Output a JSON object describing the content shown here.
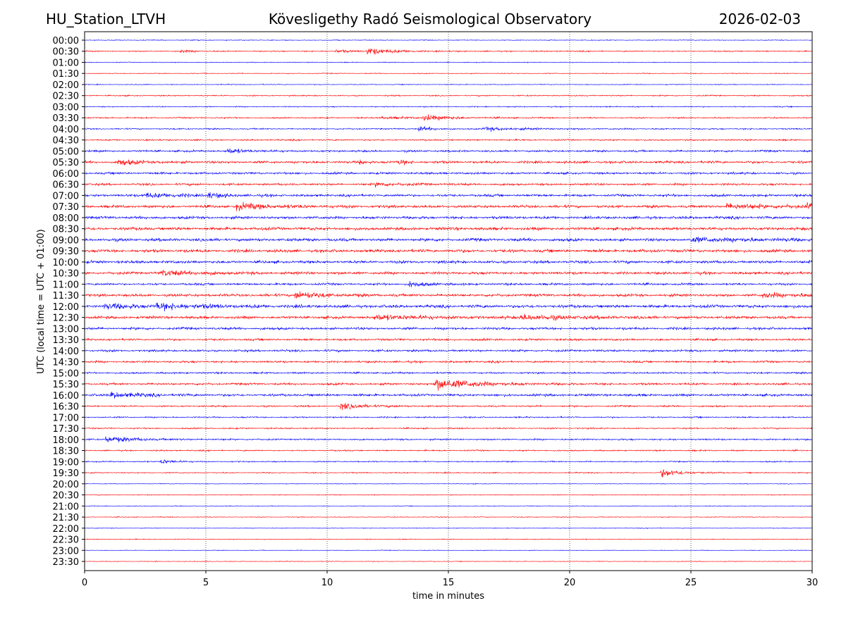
{
  "header": {
    "station": "HU_Station_LTVH",
    "observatory": "Kövesligethy Radó Seismological Observatory",
    "date": "2026-02-03"
  },
  "chart_data": {
    "type": "line",
    "subtype": "helicorder",
    "xlabel": "time in minutes",
    "ylabel": "UTC (local time = UTC + 01:00)",
    "xlim": [
      0,
      30
    ],
    "x_ticks": [
      0,
      5,
      10,
      15,
      20,
      25,
      30
    ],
    "grid": "vertical dotted lines at x ticks",
    "series_colors": [
      "#0000ff",
      "#ff0000"
    ],
    "y_tick_labels": [
      "00:00",
      "00:30",
      "01:00",
      "01:30",
      "02:00",
      "02:30",
      "03:00",
      "03:30",
      "04:00",
      "04:30",
      "05:00",
      "05:30",
      "06:00",
      "06:30",
      "07:00",
      "07:30",
      "08:00",
      "08:30",
      "09:00",
      "09:30",
      "10:00",
      "10:30",
      "11:00",
      "11:30",
      "12:00",
      "12:30",
      "13:00",
      "13:30",
      "14:00",
      "14:30",
      "15:00",
      "15:30",
      "16:00",
      "16:30",
      "17:00",
      "17:30",
      "18:00",
      "18:30",
      "19:00",
      "19:30",
      "20:00",
      "20:30",
      "21:00",
      "21:30",
      "22:00",
      "22:30",
      "23:00",
      "23:30"
    ],
    "noise_level": [
      0.6,
      0.9,
      0.6,
      0.6,
      0.6,
      0.9,
      0.8,
      1.0,
      1.0,
      1.1,
      1.5,
      1.8,
      1.6,
      1.6,
      1.8,
      2.0,
      2.0,
      2.2,
      2.2,
      2.2,
      2.0,
      2.0,
      1.6,
      2.0,
      2.2,
      2.0,
      1.8,
      1.5,
      1.6,
      1.5,
      1.3,
      1.6,
      1.8,
      1.2,
      1.0,
      1.0,
      1.2,
      1.0,
      0.9,
      0.8,
      0.5,
      0.6,
      0.5,
      0.6,
      0.5,
      0.6,
      0.5,
      0.5
    ],
    "events": [
      {
        "row": 1,
        "minute": 11.7,
        "amplitude": 6,
        "duration": 1.0
      },
      {
        "row": 1,
        "minute": 10.4,
        "amplitude": 3,
        "duration": 0.5
      },
      {
        "row": 1,
        "minute": 4.0,
        "amplitude": 2,
        "duration": 0.5
      },
      {
        "row": 7,
        "minute": 14.0,
        "amplitude": 5,
        "duration": 1.0
      },
      {
        "row": 7,
        "minute": 12.3,
        "amplitude": 2,
        "duration": 1.0
      },
      {
        "row": 8,
        "minute": 13.8,
        "amplitude": 4,
        "duration": 0.5
      },
      {
        "row": 8,
        "minute": 16.5,
        "amplitude": 3,
        "duration": 1.5
      },
      {
        "row": 10,
        "minute": 5.9,
        "amplitude": 4,
        "duration": 0.8
      },
      {
        "row": 11,
        "minute": 1.4,
        "amplitude": 5,
        "duration": 0.8
      },
      {
        "row": 11,
        "minute": 13.0,
        "amplitude": 4,
        "duration": 0.3
      },
      {
        "row": 11,
        "minute": 11.4,
        "amplitude": 3,
        "duration": 0.3
      },
      {
        "row": 13,
        "minute": 12.0,
        "amplitude": 3,
        "duration": 1.0
      },
      {
        "row": 14,
        "minute": 2.5,
        "amplitude": 4,
        "duration": 1.5
      },
      {
        "row": 14,
        "minute": 5.1,
        "amplitude": 4,
        "duration": 0.5
      },
      {
        "row": 15,
        "minute": 6.3,
        "amplitude": 5,
        "duration": 1.5
      },
      {
        "row": 15,
        "minute": 26.5,
        "amplitude": 4,
        "duration": 2.0
      },
      {
        "row": 15,
        "minute": 29.8,
        "amplitude": 5,
        "duration": 0.4
      },
      {
        "row": 18,
        "minute": 25.0,
        "amplitude": 3,
        "duration": 3.0
      },
      {
        "row": 21,
        "minute": 3.2,
        "amplitude": 4,
        "duration": 1.5
      },
      {
        "row": 22,
        "minute": 13.4,
        "amplitude": 5,
        "duration": 0.6
      },
      {
        "row": 23,
        "minute": 8.7,
        "amplitude": 6,
        "duration": 1.0
      },
      {
        "row": 23,
        "minute": 28.0,
        "amplitude": 3,
        "duration": 2.0
      },
      {
        "row": 24,
        "minute": 0.8,
        "amplitude": 4,
        "duration": 1.5
      },
      {
        "row": 24,
        "minute": 3.0,
        "amplitude": 4,
        "duration": 2.0
      },
      {
        "row": 25,
        "minute": 12.0,
        "amplitude": 4,
        "duration": 2.0
      },
      {
        "row": 25,
        "minute": 18.0,
        "amplitude": 4,
        "duration": 2.0
      },
      {
        "row": 31,
        "minute": 14.5,
        "amplitude": 10,
        "duration": 1.5
      },
      {
        "row": 32,
        "minute": 1.1,
        "amplitude": 5,
        "duration": 1.0
      },
      {
        "row": 33,
        "minute": 10.6,
        "amplitude": 5,
        "duration": 1.0
      },
      {
        "row": 36,
        "minute": 0.9,
        "amplitude": 5,
        "duration": 1.2
      },
      {
        "row": 38,
        "minute": 3.2,
        "amplitude": 4,
        "duration": 0.5
      },
      {
        "row": 39,
        "minute": 23.8,
        "amplitude": 7,
        "duration": 0.8
      }
    ]
  }
}
